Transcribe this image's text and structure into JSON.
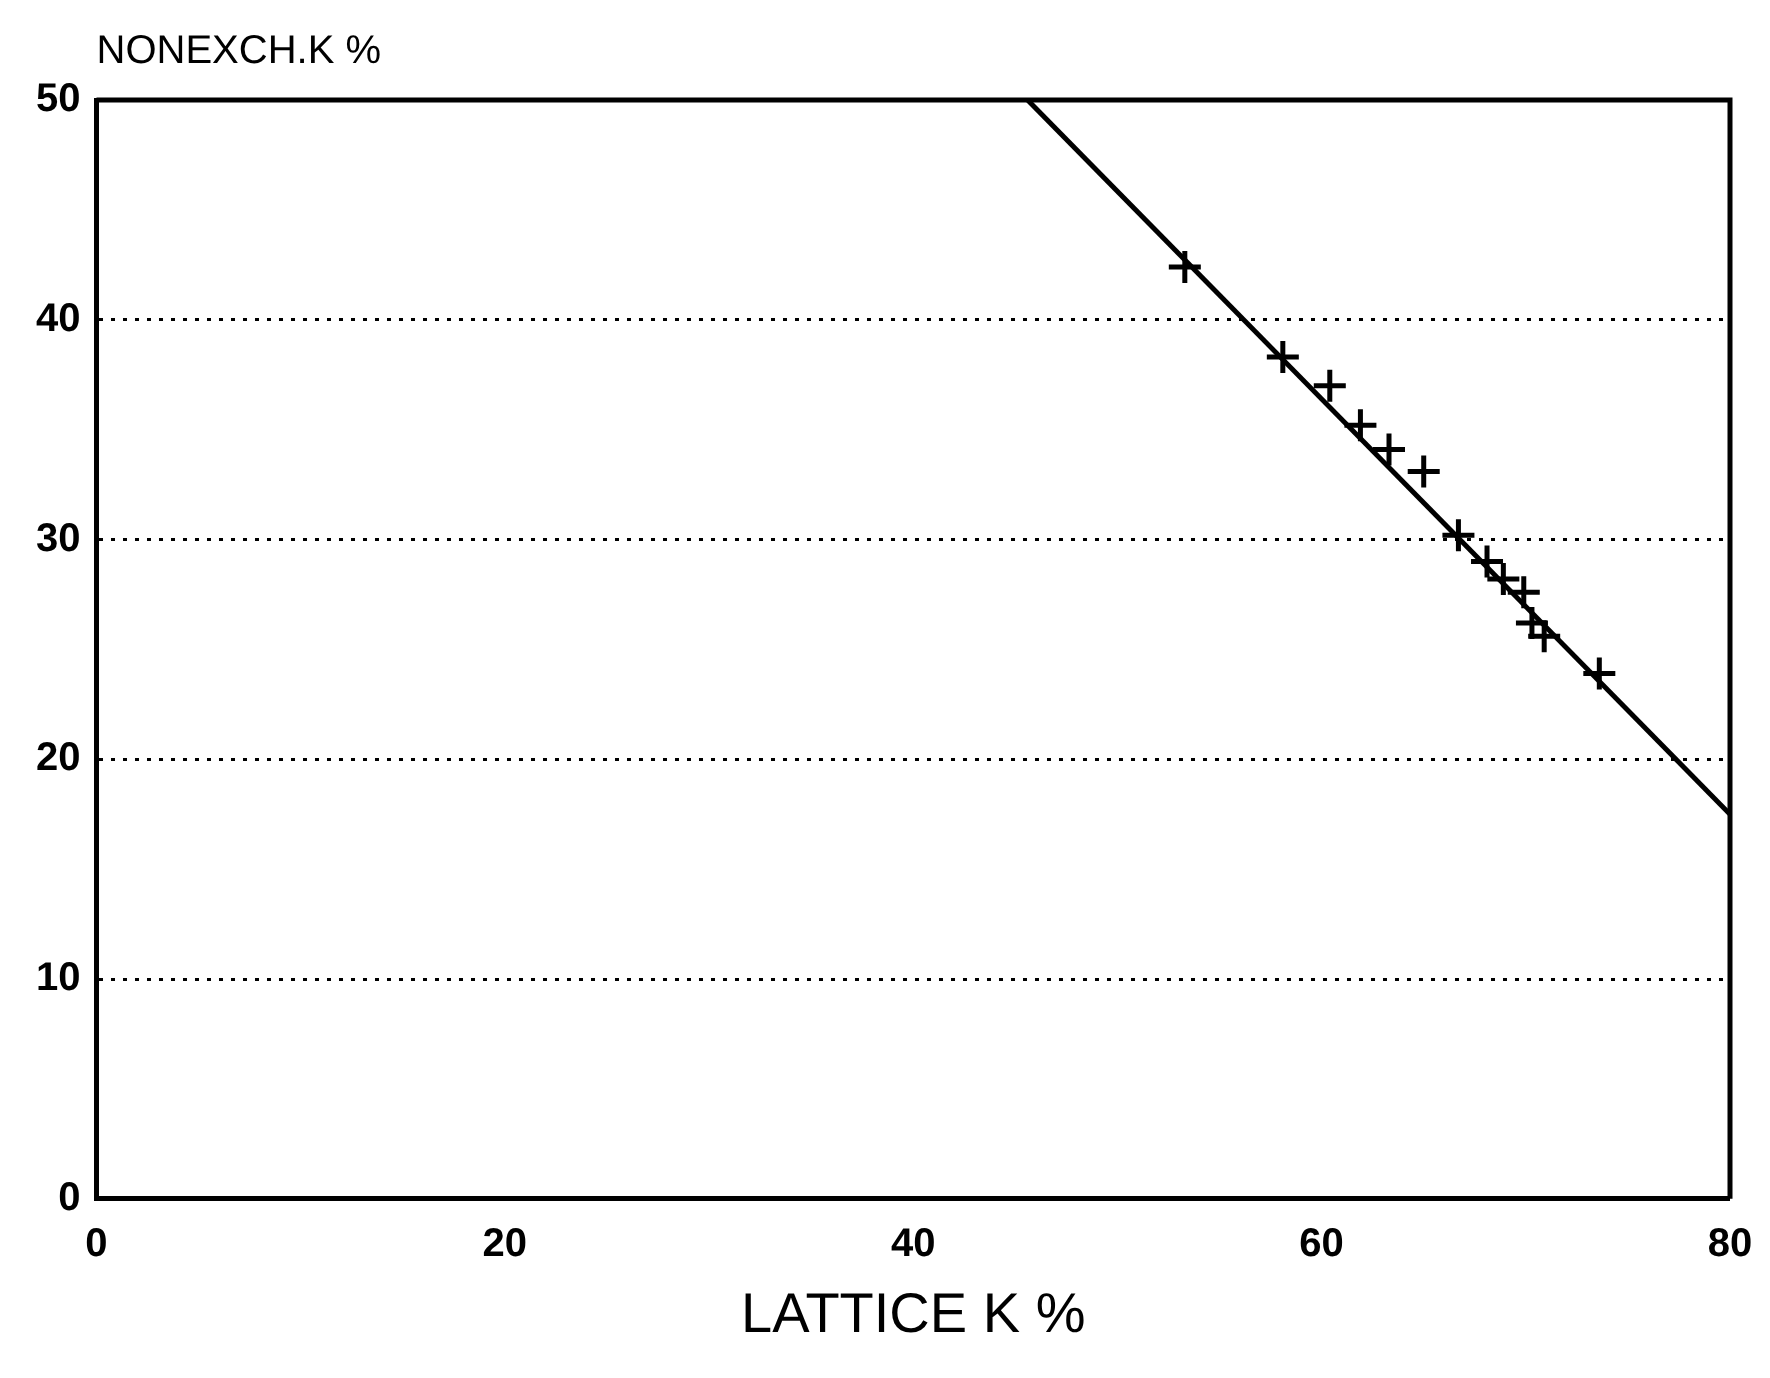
{
  "chart_data": {
    "type": "scatter",
    "xlabel": "LATTICE K %",
    "ylabel": "NONEXCH.K %",
    "xlim": [
      0,
      80
    ],
    "xticks": [
      0,
      20,
      40,
      60,
      80
    ],
    "ylim": [
      0,
      50
    ],
    "yticks": [
      0,
      10,
      20,
      30,
      40,
      50
    ],
    "grid": "y",
    "legend": false,
    "series": [
      {
        "color": "#000000",
        "marker": "cross",
        "x": [
          53.3,
          58.1,
          60.4,
          61.9,
          63.3,
          65.0,
          66.7,
          68.1,
          68.9,
          69.9,
          70.3,
          70.9,
          73.6
        ],
        "values": [
          42.4,
          38.3,
          37.0,
          35.2,
          34.1,
          33.1,
          30.2,
          29.0,
          28.2,
          27.6,
          26.2,
          25.6,
          23.9
        ]
      },
      {
        "type": "line",
        "color": "#000000",
        "marker": "none",
        "x": [
          45.6,
          80
        ],
        "values": [
          50,
          17.5
        ]
      }
    ]
  }
}
